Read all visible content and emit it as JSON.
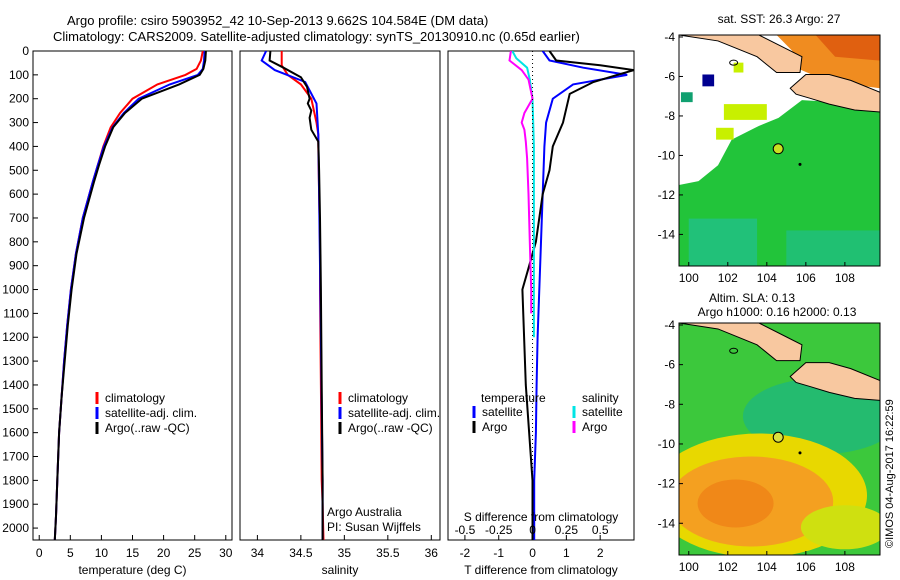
{
  "figure": {
    "title_line1": "Argo profile: csiro 5903952_42 10-Sep-2013 9.662S 104.584E (DM data)",
    "title_line2": "Climatology: CARS2009. Satellite-adjusted climatology: synTS_20130910.nc (0.65d earlier)",
    "side_stamp": "©IMOS 04-Aug-2017 16:22:59",
    "colors": {
      "climatology": "#ff0000",
      "satellite": "#0000ff",
      "argo": "#000000",
      "argo_salinity_diff": "#ff00ff",
      "satellite_salinity_diff": "#00e5e5",
      "land": "#f8c8a0"
    }
  },
  "chart_data": [
    {
      "id": "temperature",
      "type": "line",
      "xlabel": "temperature (deg C)",
      "ylabel": "",
      "xlim": [
        -1,
        31
      ],
      "ylim": [
        2050,
        0
      ],
      "xticks": [
        0,
        5,
        10,
        15,
        20,
        25,
        30
      ],
      "yticks": [
        0,
        100,
        200,
        300,
        400,
        500,
        600,
        700,
        800,
        900,
        1000,
        1100,
        1200,
        1300,
        1400,
        1500,
        1600,
        1700,
        1800,
        1900,
        2000
      ],
      "legend": [
        "climatology",
        "satellite-adj. clim.",
        "Argo(..raw -QC)"
      ],
      "series": [
        {
          "name": "climatology",
          "color": "#ff0000",
          "x": [
            26.3,
            26.0,
            25.3,
            23.5,
            19.0,
            15.0,
            13.0,
            11.5,
            10.3,
            9.4,
            8.6,
            7.0,
            5.9,
            5.1,
            4.5,
            4.0,
            3.6,
            3.2,
            2.9,
            2.7,
            2.5
          ],
          "y": [
            0,
            40,
            75,
            100,
            140,
            200,
            260,
            320,
            400,
            480,
            550,
            700,
            850,
            1000,
            1150,
            1300,
            1450,
            1600,
            1800,
            1950,
            2050
          ]
        },
        {
          "name": "satellite-adj. clim.",
          "color": "#0000ff",
          "x": [
            26.6,
            26.5,
            26.3,
            25.5,
            21.0,
            16.0,
            13.6,
            11.8,
            10.4,
            9.4,
            8.6,
            7.0,
            5.9,
            5.1,
            4.5,
            4.0,
            3.6,
            3.2,
            2.9,
            2.7,
            2.5
          ],
          "y": [
            0,
            40,
            75,
            100,
            140,
            200,
            260,
            320,
            400,
            480,
            550,
            700,
            850,
            1000,
            1150,
            1300,
            1450,
            1600,
            1800,
            1950,
            2050
          ]
        },
        {
          "name": "Argo(..raw -QC)",
          "color": "#000000",
          "x": [
            26.8,
            26.7,
            26.4,
            25.8,
            22.5,
            16.5,
            13.8,
            11.9,
            10.6,
            9.6,
            8.8,
            7.2,
            6.0,
            5.2,
            4.6,
            4.1,
            3.6,
            3.2,
            2.9,
            2.7,
            2.5
          ],
          "y": [
            0,
            40,
            75,
            100,
            140,
            200,
            260,
            320,
            400,
            480,
            550,
            700,
            850,
            1000,
            1150,
            1300,
            1450,
            1600,
            1800,
            1950,
            2050
          ]
        }
      ]
    },
    {
      "id": "salinity",
      "type": "line",
      "xlabel": "salinity",
      "ylabel": "",
      "xlim": [
        33.8,
        36.1
      ],
      "ylim": [
        2050,
        0
      ],
      "xticks": [
        34,
        34.5,
        35,
        35.5,
        36
      ],
      "xticklabels": [
        "34",
        "34.5",
        "35",
        "35.5",
        "36"
      ],
      "legend": [
        "climatology",
        "satellite-adj. clim.",
        "Argo(..raw -QC)"
      ],
      "annotation_line1": "Argo Australia",
      "annotation_line2": "PI: Susan Wijffels",
      "series": [
        {
          "name": "climatology",
          "color": "#ff0000",
          "x": [
            34.28,
            34.28,
            34.35,
            34.5,
            34.62,
            34.68,
            34.7,
            34.7,
            34.71,
            34.72,
            34.72,
            34.73,
            34.74,
            34.75,
            34.76
          ],
          "y": [
            0,
            60,
            100,
            140,
            200,
            300,
            350,
            400,
            600,
            800,
            1000,
            1400,
            1800,
            1900,
            2050
          ]
        },
        {
          "name": "satellite-adj. clim.",
          "color": "#0000ff",
          "x": [
            34.1,
            34.05,
            34.2,
            34.55,
            34.68,
            34.7,
            34.71,
            34.72,
            34.73,
            34.74,
            34.75,
            34.75
          ],
          "y": [
            0,
            40,
            80,
            130,
            220,
            350,
            600,
            900,
            1200,
            1500,
            1800,
            2050
          ]
        },
        {
          "name": "Argo(..raw -QC)",
          "color": "#000000",
          "x": [
            34.15,
            34.14,
            34.3,
            34.5,
            34.57,
            34.6,
            34.58,
            34.62,
            34.6,
            34.62,
            34.7,
            34.71,
            34.72,
            34.73,
            34.74,
            34.75,
            34.75
          ],
          "y": [
            0,
            40,
            70,
            110,
            150,
            200,
            220,
            250,
            280,
            330,
            380,
            500,
            700,
            1000,
            1400,
            1800,
            2050
          ]
        }
      ]
    },
    {
      "id": "difference",
      "type": "line",
      "xlabel": "T difference from climatology",
      "top_axis_label": "S difference from climatology",
      "xlim": [
        -2.5,
        3
      ],
      "ylim": [
        2050,
        0
      ],
      "xticks": [
        -2,
        -1,
        0,
        1,
        2
      ],
      "top_ticks": [
        -0.5,
        -0.25,
        0,
        0.25,
        0.5
      ],
      "top_ticklabels": [
        "-0.5",
        "-0.25",
        "0",
        "0.25",
        "0.5"
      ],
      "legend_titles": [
        "temperature",
        "salinity"
      ],
      "legend_temperature": [
        "satellite",
        "Argo"
      ],
      "legend_salinity": [
        "satellite",
        "Argo"
      ],
      "series": [
        {
          "name": "T satellite",
          "color": "#0000ff",
          "x": [
            0.3,
            0.5,
            1.5,
            2.8,
            1.2,
            0.6,
            0.4,
            0.35,
            0.3,
            0.25,
            0.2,
            0.15,
            0.12,
            0.1,
            0.05,
            0.05
          ],
          "y": [
            0,
            40,
            70,
            100,
            140,
            200,
            300,
            400,
            600,
            800,
            1000,
            1200,
            1400,
            1600,
            1800,
            2050
          ]
        },
        {
          "name": "T Argo",
          "color": "#000000",
          "x": [
            0.5,
            0.7,
            2.0,
            3.0,
            2.5,
            1.8,
            1.1,
            0.9,
            0.6,
            0.5,
            0.3,
            0.2,
            0.1,
            -0.1,
            -0.3,
            -0.2,
            0.0,
            0.0
          ],
          "y": [
            0,
            40,
            60,
            80,
            100,
            130,
            180,
            300,
            400,
            500,
            600,
            700,
            800,
            900,
            1000,
            1400,
            1800,
            2050
          ]
        },
        {
          "name": "S satellite",
          "color": "#00e5e5",
          "scale": "salinity",
          "x": [
            -0.15,
            -0.12,
            -0.04,
            -0.02,
            0.0,
            0.01,
            0.01,
            0.01
          ],
          "y": [
            0,
            30,
            70,
            120,
            200,
            400,
            800,
            1200
          ]
        },
        {
          "name": "S Argo",
          "color": "#ff00ff",
          "scale": "salinity",
          "x": [
            -0.16,
            -0.17,
            -0.08,
            -0.03,
            0.0,
            -0.06,
            -0.08,
            -0.06,
            -0.05,
            -0.04,
            -0.03,
            -0.02,
            -0.01,
            -0.01
          ],
          "y": [
            0,
            40,
            80,
            120,
            200,
            260,
            300,
            330,
            380,
            450,
            600,
            800,
            1000,
            1100
          ]
        }
      ]
    },
    {
      "id": "sst_map",
      "type": "heatmap",
      "title": "sat. SST: 26.3 Argo: 27",
      "xlim": [
        99.5,
        109.8
      ],
      "ylim": [
        -15.6,
        -3.9
      ],
      "xticks": [
        100,
        102,
        104,
        106,
        108
      ],
      "yticks": [
        -4,
        -6,
        -8,
        -10,
        -12,
        -14
      ],
      "argo_position": {
        "lon": 104.584,
        "lat": -9.662
      }
    },
    {
      "id": "sla_map",
      "type": "heatmap",
      "title_line1": "Altim. SLA: 0.13",
      "title_line2": "Argo h1000: 0.16 h2000: 0.13",
      "xlim": [
        99.5,
        109.8
      ],
      "ylim": [
        -15.6,
        -3.9
      ],
      "xticks": [
        100,
        102,
        104,
        106,
        108
      ],
      "yticks": [
        -4,
        -6,
        -8,
        -10,
        -12,
        -14
      ],
      "argo_position": {
        "lon": 104.584,
        "lat": -9.662
      }
    }
  ]
}
